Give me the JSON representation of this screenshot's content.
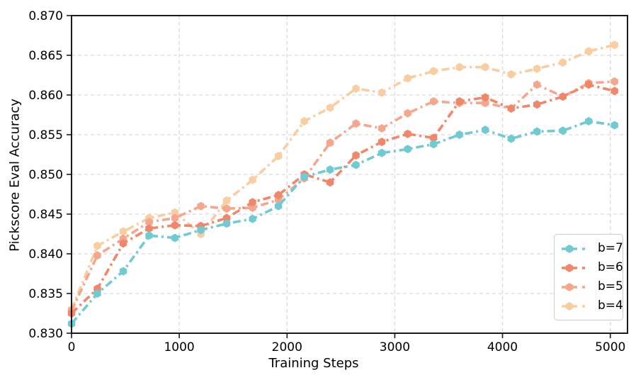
{
  "chart_data": {
    "type": "line",
    "title": "",
    "xlabel": "Training Steps",
    "ylabel": "Pickscore Eval Accuracy",
    "xlim": [
      0,
      5160
    ],
    "ylim": [
      0.83,
      0.87
    ],
    "xticks": [
      0,
      1000,
      2000,
      3000,
      4000,
      5000
    ],
    "xtick_labels": [
      "0",
      "1000",
      "2000",
      "3000",
      "4000",
      "5000"
    ],
    "yticks": [
      0.83,
      0.835,
      0.84,
      0.845,
      0.85,
      0.855,
      0.86,
      0.865,
      0.87
    ],
    "ytick_labels": [
      "0.830",
      "0.835",
      "0.840",
      "0.845",
      "0.850",
      "0.855",
      "0.860",
      "0.865",
      "0.870"
    ],
    "grid": true,
    "legend_position": "lower right",
    "line_style": "dash-dot",
    "marker": "hexagon",
    "x": [
      0,
      240,
      480,
      720,
      960,
      1200,
      1440,
      1680,
      1920,
      2160,
      2400,
      2640,
      2880,
      3120,
      3360,
      3600,
      3840,
      4080,
      4320,
      4560,
      4800,
      5040
    ],
    "series": [
      {
        "name": "b=7",
        "color": "#6FCBD1",
        "values": [
          0.8312,
          0.835,
          0.8378,
          0.8423,
          0.842,
          0.843,
          0.8438,
          0.8444,
          0.846,
          0.8497,
          0.8506,
          0.8512,
          0.8527,
          0.8532,
          0.8538,
          0.855,
          0.8556,
          0.8545,
          0.8554,
          0.8555,
          0.8567,
          0.8562
        ]
      },
      {
        "name": "b=6",
        "color": "#F0876B",
        "values": [
          0.8325,
          0.8356,
          0.8413,
          0.8432,
          0.8436,
          0.8435,
          0.8445,
          0.8465,
          0.8474,
          0.85,
          0.849,
          0.8524,
          0.8541,
          0.8551,
          0.8546,
          0.8592,
          0.8597,
          0.8583,
          0.8588,
          0.8598,
          0.8613,
          0.8605
        ]
      },
      {
        "name": "b=5",
        "color": "#F5A78E",
        "values": [
          0.8328,
          0.8398,
          0.8419,
          0.844,
          0.8445,
          0.846,
          0.8457,
          0.8458,
          0.8468,
          0.8495,
          0.854,
          0.8564,
          0.8558,
          0.8577,
          0.8592,
          0.859,
          0.859,
          0.8583,
          0.8613,
          0.8598,
          0.8615,
          0.8617
        ]
      },
      {
        "name": "b=4",
        "color": "#F9CDA0",
        "values": [
          0.833,
          0.841,
          0.8428,
          0.8445,
          0.8452,
          0.8425,
          0.8467,
          0.8493,
          0.8523,
          0.8567,
          0.8584,
          0.8608,
          0.8603,
          0.8621,
          0.863,
          0.8635,
          0.8635,
          0.8626,
          0.8633,
          0.8641,
          0.8655,
          0.8663
        ]
      }
    ]
  }
}
